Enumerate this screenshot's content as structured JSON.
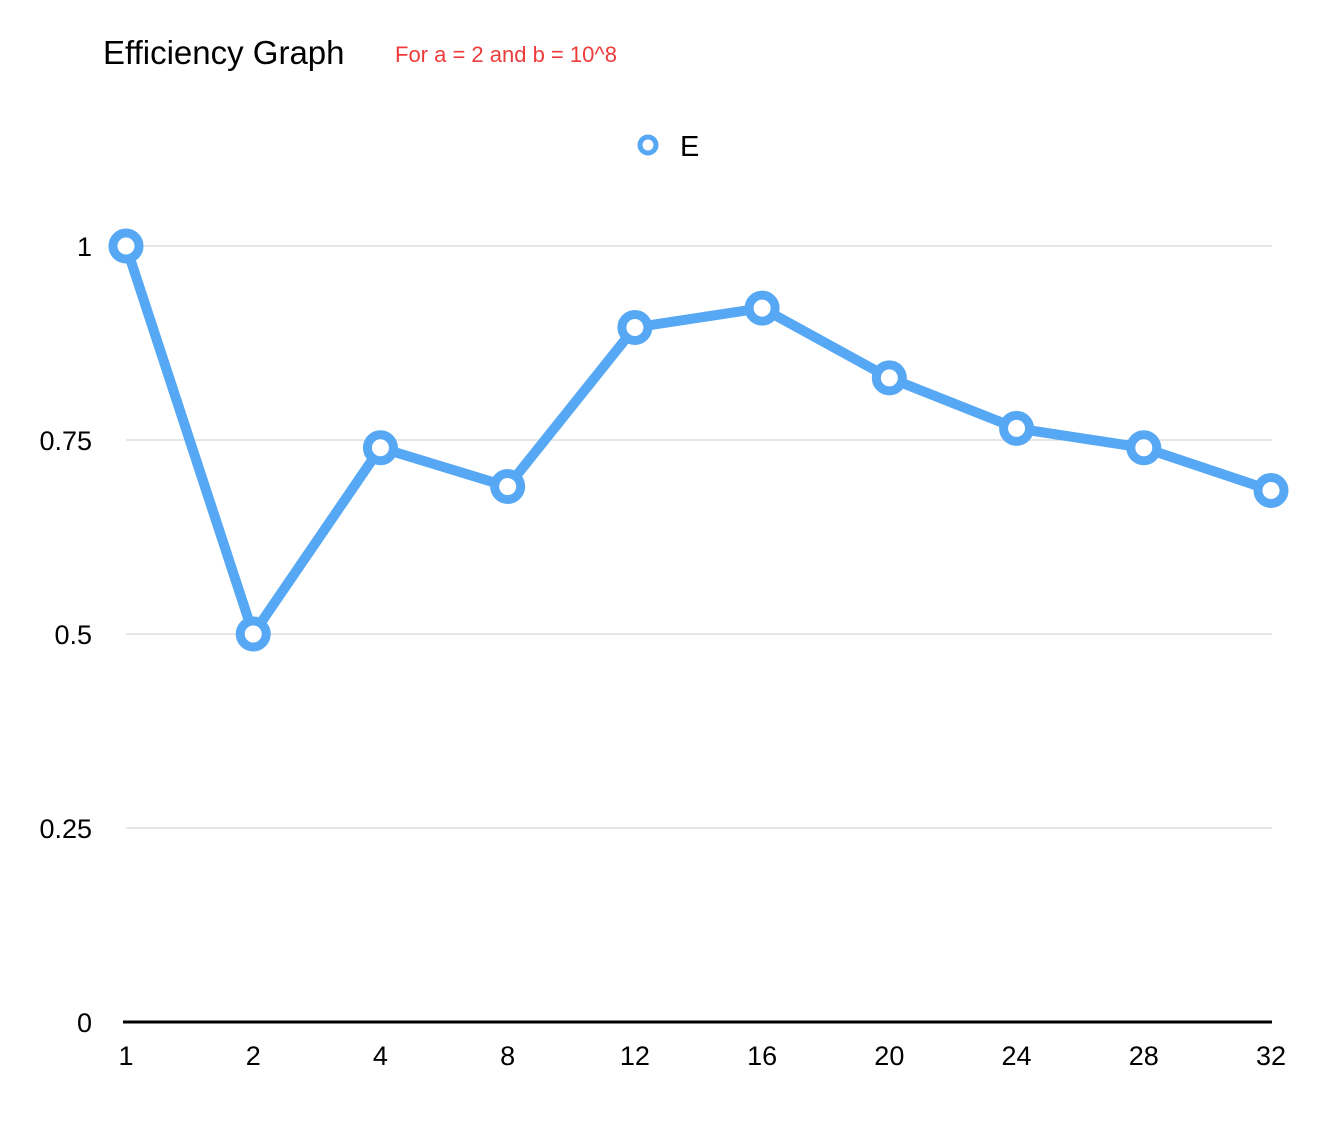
{
  "chart_data": {
    "type": "line",
    "title": "Efficiency Graph",
    "subtitle": "For a = 2 and b = 10^8",
    "categories": [
      "1",
      "2",
      "4",
      "8",
      "12",
      "16",
      "20",
      "24",
      "28",
      "32"
    ],
    "series": [
      {
        "name": "E",
        "color": "#57A8F4",
        "values": [
          1.0,
          0.5,
          0.74,
          0.69,
          0.895,
          0.92,
          0.83,
          0.765,
          0.74,
          0.685
        ]
      }
    ],
    "xlabel": "",
    "ylabel": "",
    "ylim": [
      0,
      1
    ],
    "yticks": [
      "0",
      "0.25",
      "0.5",
      "0.75",
      "1"
    ],
    "grid": true,
    "legend": "top-center",
    "colors": {
      "subtitle": "#EE3B3B",
      "grid": "#CCCCCC",
      "axis": "#000000"
    }
  }
}
